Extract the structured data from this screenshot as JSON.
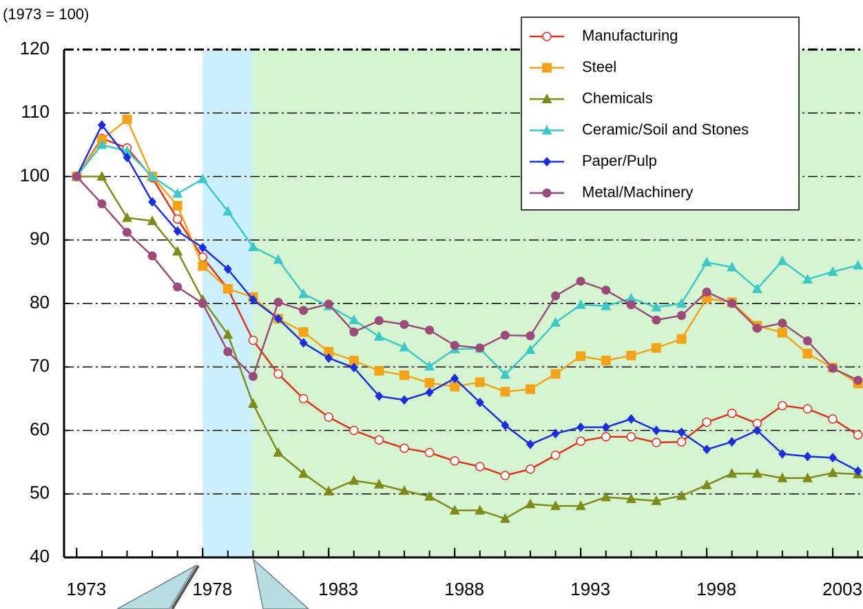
{
  "chart_data": {
    "type": "line",
    "y_label": "(1973 = 100)",
    "x": [
      1973,
      1974,
      1975,
      1976,
      1977,
      1978,
      1979,
      1980,
      1981,
      1982,
      1983,
      1984,
      1985,
      1986,
      1987,
      1988,
      1989,
      1990,
      1991,
      1992,
      1993,
      1994,
      1995,
      1996,
      1997,
      1998,
      1999,
      2000,
      2001,
      2002,
      2003,
      2004
    ],
    "xlim": [
      1972.5,
      2004.2
    ],
    "xticks": [
      1973,
      1978,
      1983,
      1988,
      1993,
      1998,
      2003
    ],
    "ylim": [
      40,
      120
    ],
    "yticks": [
      40,
      50,
      60,
      70,
      80,
      90,
      100,
      110,
      120
    ],
    "grid": true,
    "legend": "top-right",
    "shaded_regions": [
      {
        "from": 1978,
        "to": 1980,
        "color": "#ccf0fb"
      },
      {
        "from": 1980,
        "to": 2004.2,
        "color": "#d5f5d0"
      }
    ],
    "series": [
      {
        "name": "Manufacturing",
        "color": "#e0301e",
        "marker": "open-circle",
        "values": [
          100,
          106,
          104.5,
          99.8,
          93.3,
          87.3,
          82.3,
          74.2,
          68.9,
          65,
          62.1,
          60,
          58.5,
          57.2,
          56.5,
          55.2,
          54.3,
          52.9,
          53.9,
          56.1,
          58.3,
          59,
          59,
          58.1,
          58.2,
          61.3,
          62.7,
          61.1,
          63.9,
          63.4,
          61.8,
          59.3
        ]
      },
      {
        "name": "Steel",
        "color": "#f5a21b",
        "marker": "square",
        "values": [
          100,
          105.8,
          109,
          100,
          95.4,
          85.9,
          82.3,
          81,
          77.6,
          75.5,
          72.4,
          71,
          69.4,
          68.7,
          67.5,
          66.9,
          67.6,
          66.1,
          66.5,
          68.9,
          71.7,
          71,
          71.8,
          73,
          74.4,
          80.8,
          80.2,
          76.5,
          75.4,
          72.1,
          69.9,
          67.4
        ]
      },
      {
        "name": "Chemicals",
        "color": "#7f8a1a",
        "marker": "triangle",
        "values": [
          100,
          100,
          93.5,
          93,
          88.2,
          80.6,
          75.1,
          64.2,
          56.5,
          53.2,
          50.4,
          52.1,
          51.5,
          50.5,
          49.6,
          47.4,
          47.4,
          46.1,
          48.4,
          48.1,
          48.1,
          49.5,
          49.2,
          48.9,
          49.7,
          51.4,
          53.2,
          53.2,
          52.5,
          52.5,
          53.3,
          53.1
        ]
      },
      {
        "name": "Ceramic/Soil and Stones",
        "color": "#3cc8c8",
        "marker": "triangle",
        "values": [
          100,
          105,
          104,
          100,
          97.3,
          99.6,
          94.5,
          88.9,
          86.9,
          81.5,
          79.6,
          77.4,
          74.8,
          73.1,
          70.1,
          72.8,
          72.9,
          68.8,
          72.7,
          77,
          79.8,
          79.6,
          80.8,
          79.4,
          80,
          86.5,
          85.7,
          82.3,
          86.7,
          83.8,
          85,
          86
        ]
      },
      {
        "name": "Paper/Pulp",
        "color": "#1a2ee0",
        "marker": "diamond",
        "values": [
          100,
          108.1,
          103,
          96,
          91.4,
          88.8,
          85.4,
          80.6,
          77.6,
          73.8,
          71.4,
          69.9,
          65.4,
          64.8,
          66,
          68.2,
          64.4,
          60.8,
          57.8,
          59.5,
          60.5,
          60.5,
          61.8,
          60,
          59.7,
          57,
          58.2,
          60,
          56.3,
          55.9,
          55.7,
          53.6
        ]
      },
      {
        "name": "Metal/Machinery",
        "color": "#9c4a7a",
        "marker": "circle",
        "values": [
          100,
          95.7,
          91.2,
          87.5,
          82.6,
          80,
          72.4,
          68.5,
          80.2,
          78.9,
          79.9,
          75.5,
          77.3,
          76.7,
          75.8,
          73.4,
          73,
          75,
          74.9,
          81.2,
          83.5,
          82.1,
          79.8,
          77.4,
          78.1,
          81.8,
          80,
          76.1,
          76.9,
          74.1,
          69.8,
          67.9
        ]
      }
    ]
  }
}
